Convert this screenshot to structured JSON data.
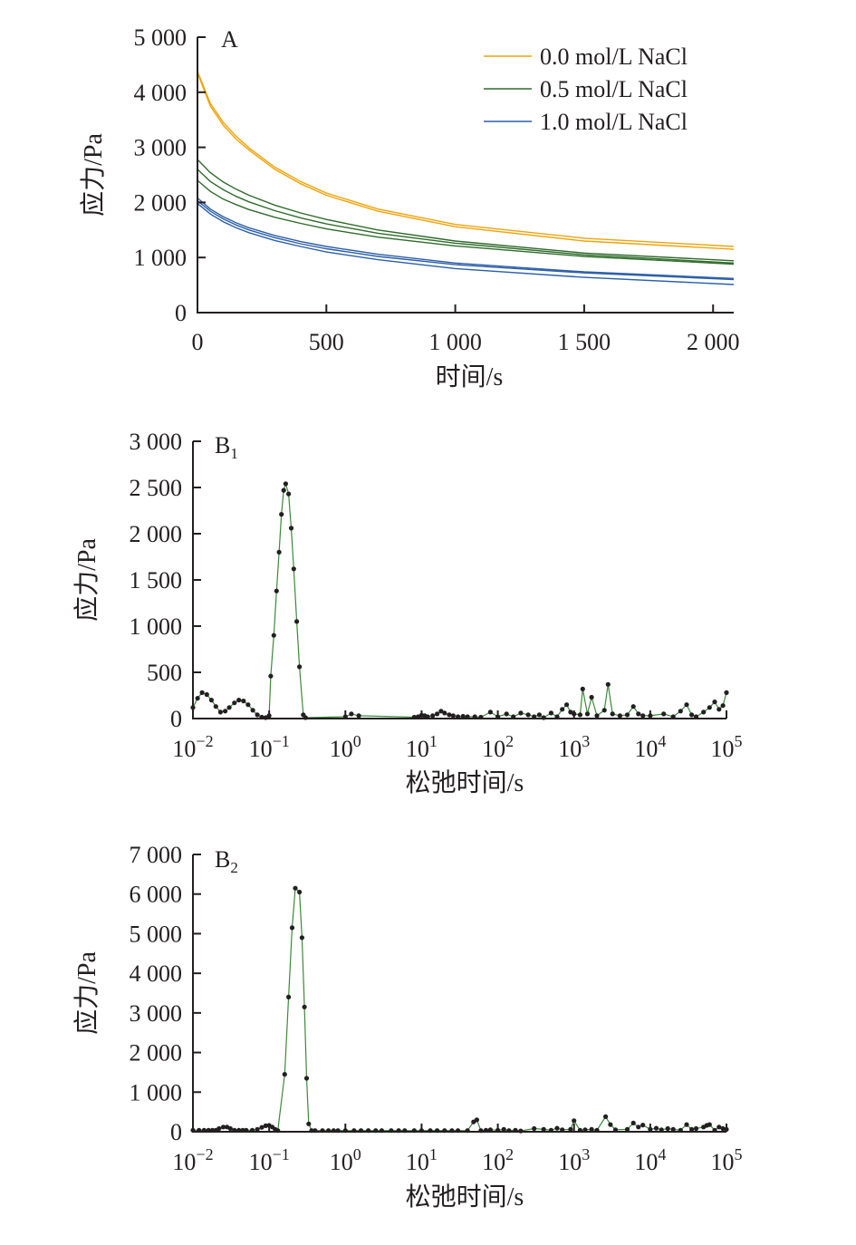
{
  "colors": {
    "nacl_0_0": "#f0a30a",
    "nacl_0_5": "#2e6b2a",
    "nacl_1_0": "#2c5fa8",
    "spectrum_line": "#3a8a3a",
    "spectrum_point": "#231f20",
    "axis": "#231f20"
  },
  "chart_data": [
    {
      "type": "line",
      "panel_label": "A",
      "xlabel": "时间/s",
      "ylabel": "应力/Pa",
      "xlim": [
        0,
        2080
      ],
      "ylim": [
        0,
        5000
      ],
      "xticks": [
        0,
        500,
        1000,
        1500,
        2000
      ],
      "xtick_labels": [
        "0",
        "500",
        "1 000",
        "1 500",
        "2 000"
      ],
      "yticks": [
        0,
        1000,
        2000,
        3000,
        4000,
        5000
      ],
      "ytick_labels": [
        "0",
        "1 000",
        "2 000",
        "3 000",
        "4 000",
        "5 000"
      ],
      "legend_position": "top-right",
      "legend": [
        "0.0 mol/L NaCl",
        "0.5 mol/L NaCl",
        "1.0 mol/L NaCl"
      ],
      "x": [
        0,
        50,
        100,
        150,
        200,
        300,
        400,
        500,
        700,
        1000,
        1500,
        2080
      ],
      "series": [
        {
          "name": "0.0 mol/L NaCl",
          "color_key": "nacl_0_0",
          "values": [
            4380,
            3800,
            3450,
            3200,
            2990,
            2640,
            2380,
            2170,
            1880,
            1600,
            1350,
            1200
          ]
        },
        {
          "name": "0.0 mol/L NaCl",
          "color_key": "nacl_0_0",
          "values": [
            4350,
            3750,
            3400,
            3150,
            2950,
            2600,
            2340,
            2130,
            1840,
            1560,
            1300,
            1150
          ]
        },
        {
          "name": "0.5 mol/L NaCl",
          "color_key": "nacl_0_5",
          "values": [
            2780,
            2540,
            2370,
            2240,
            2130,
            1950,
            1810,
            1690,
            1500,
            1300,
            1080,
            940
          ]
        },
        {
          "name": "0.5 mol/L NaCl",
          "color_key": "nacl_0_5",
          "values": [
            2600,
            2380,
            2230,
            2110,
            2010,
            1850,
            1720,
            1610,
            1440,
            1260,
            1050,
            900
          ]
        },
        {
          "name": "0.5 mol/L NaCl",
          "color_key": "nacl_0_5",
          "values": [
            2400,
            2200,
            2060,
            1960,
            1870,
            1730,
            1620,
            1520,
            1370,
            1210,
            1020,
            880
          ]
        },
        {
          "name": "1.0 mol/L NaCl",
          "color_key": "nacl_1_0",
          "values": [
            2080,
            1880,
            1740,
            1630,
            1540,
            1400,
            1290,
            1200,
            1060,
            900,
            740,
            620
          ]
        },
        {
          "name": "1.0 mol/L NaCl",
          "color_key": "nacl_1_0",
          "values": [
            2030,
            1840,
            1700,
            1590,
            1500,
            1360,
            1250,
            1160,
            1020,
            870,
            720,
            600
          ]
        },
        {
          "name": "1.0 mol/L NaCl",
          "color_key": "nacl_1_0",
          "values": [
            1980,
            1790,
            1650,
            1540,
            1450,
            1310,
            1200,
            1100,
            960,
            800,
            640,
            510
          ]
        }
      ]
    },
    {
      "type": "line",
      "panel_label": "B",
      "panel_label_sub": "1",
      "xlabel": "松弛时间/s",
      "ylabel": "应力/Pa",
      "xscale": "log",
      "xlim": [
        0.01,
        100000
      ],
      "ylim": [
        0,
        3000
      ],
      "xtick_exponents": [
        "−2",
        "−1",
        "0",
        "1",
        "2",
        "3",
        "4",
        "5"
      ],
      "xtick_base": "10",
      "yticks": [
        0,
        500,
        1000,
        1500,
        2000,
        2500,
        3000
      ],
      "ytick_labels": [
        "0",
        "500",
        "1 000",
        "1 500",
        "2 000",
        "2 500",
        "3 000"
      ],
      "series": [
        {
          "name": "",
          "points": [
            [
              0.01,
              120
            ],
            [
              0.0115,
              220
            ],
            [
              0.0132,
              280
            ],
            [
              0.0152,
              260
            ],
            [
              0.0175,
              200
            ],
            [
              0.02,
              130
            ],
            [
              0.023,
              70
            ],
            [
              0.0265,
              80
            ],
            [
              0.03,
              120
            ],
            [
              0.035,
              170
            ],
            [
              0.04,
              200
            ],
            [
              0.046,
              190
            ],
            [
              0.053,
              150
            ],
            [
              0.061,
              90
            ],
            [
              0.07,
              40
            ],
            [
              0.08,
              15
            ],
            [
              0.09,
              10
            ],
            [
              0.1,
              30
            ],
            [
              0.105,
              460
            ],
            [
              0.115,
              900
            ],
            [
              0.125,
              1380
            ],
            [
              0.135,
              1800
            ],
            [
              0.145,
              2210
            ],
            [
              0.155,
              2470
            ],
            [
              0.165,
              2540
            ],
            [
              0.18,
              2430
            ],
            [
              0.195,
              2060
            ],
            [
              0.21,
              1620
            ],
            [
              0.23,
              1050
            ],
            [
              0.25,
              560
            ],
            [
              0.28,
              40
            ],
            [
              0.3,
              10
            ],
            [
              1.0,
              20
            ],
            [
              1.2,
              50
            ],
            [
              1.5,
              30
            ],
            [
              8,
              15
            ],
            [
              9,
              20
            ],
            [
              10,
              35
            ],
            [
              11,
              30
            ],
            [
              12,
              20
            ],
            [
              14,
              30
            ],
            [
              16,
              50
            ],
            [
              18,
              80
            ],
            [
              20,
              60
            ],
            [
              23,
              40
            ],
            [
              26,
              30
            ],
            [
              30,
              20
            ],
            [
              35,
              25
            ],
            [
              40,
              20
            ],
            [
              50,
              20
            ],
            [
              60,
              15
            ],
            [
              80,
              70
            ],
            [
              100,
              20
            ],
            [
              130,
              50
            ],
            [
              160,
              20
            ],
            [
              200,
              60
            ],
            [
              250,
              40
            ],
            [
              300,
              20
            ],
            [
              350,
              40
            ],
            [
              400,
              10
            ],
            [
              500,
              60
            ],
            [
              600,
              20
            ],
            [
              700,
              100
            ],
            [
              800,
              150
            ],
            [
              900,
              70
            ],
            [
              1000,
              50
            ],
            [
              1200,
              40
            ],
            [
              1300,
              320
            ],
            [
              1500,
              50
            ],
            [
              1700,
              230
            ],
            [
              2000,
              30
            ],
            [
              2500,
              90
            ],
            [
              2800,
              370
            ],
            [
              3200,
              50
            ],
            [
              4000,
              30
            ],
            [
              5000,
              40
            ],
            [
              6000,
              130
            ],
            [
              7000,
              50
            ],
            [
              8000,
              30
            ],
            [
              10000,
              30
            ],
            [
              15000,
              50
            ],
            [
              20000,
              20
            ],
            [
              25000,
              80
            ],
            [
              30000,
              150
            ],
            [
              35000,
              40
            ],
            [
              40000,
              20
            ],
            [
              50000,
              70
            ],
            [
              60000,
              120
            ],
            [
              70000,
              180
            ],
            [
              80000,
              100
            ],
            [
              90000,
              140
            ],
            [
              100000,
              280
            ]
          ]
        }
      ]
    },
    {
      "type": "line",
      "panel_label": "B",
      "panel_label_sub": "2",
      "xlabel": "松弛时间/s",
      "ylabel": "应力/Pa",
      "xscale": "log",
      "xlim": [
        0.01,
        100000
      ],
      "ylim": [
        0,
        7000
      ],
      "xtick_exponents": [
        "−2",
        "−1",
        "0",
        "1",
        "2",
        "3",
        "4",
        "5"
      ],
      "xtick_base": "10",
      "yticks": [
        0,
        1000,
        2000,
        3000,
        4000,
        5000,
        6000,
        7000
      ],
      "ytick_labels": [
        "0",
        "1 000",
        "2 000",
        "3 000",
        "4 000",
        "5 000",
        "6 000",
        "7 000"
      ],
      "series": [
        {
          "name": "",
          "points": [
            [
              0.01,
              40
            ],
            [
              0.012,
              40
            ],
            [
              0.014,
              40
            ],
            [
              0.016,
              40
            ],
            [
              0.018,
              40
            ],
            [
              0.02,
              40
            ],
            [
              0.022,
              80
            ],
            [
              0.025,
              120
            ],
            [
              0.028,
              120
            ],
            [
              0.031,
              80
            ],
            [
              0.035,
              40
            ],
            [
              0.04,
              40
            ],
            [
              0.045,
              40
            ],
            [
              0.05,
              40
            ],
            [
              0.06,
              40
            ],
            [
              0.07,
              60
            ],
            [
              0.08,
              110
            ],
            [
              0.09,
              150
            ],
            [
              0.1,
              160
            ],
            [
              0.11,
              120
            ],
            [
              0.12,
              60
            ],
            [
              0.13,
              30
            ],
            [
              0.16,
              1450
            ],
            [
              0.18,
              3400
            ],
            [
              0.2,
              5150
            ],
            [
              0.22,
              6150
            ],
            [
              0.25,
              6050
            ],
            [
              0.27,
              4900
            ],
            [
              0.29,
              3150
            ],
            [
              0.31,
              1350
            ],
            [
              0.33,
              200
            ],
            [
              0.36,
              30
            ],
            [
              0.4,
              30
            ],
            [
              0.5,
              30
            ],
            [
              0.6,
              30
            ],
            [
              0.7,
              30
            ],
            [
              0.8,
              30
            ],
            [
              1,
              30
            ],
            [
              1.3,
              30
            ],
            [
              1.6,
              30
            ],
            [
              2,
              30
            ],
            [
              2.5,
              30
            ],
            [
              3,
              30
            ],
            [
              4,
              30
            ],
            [
              5,
              30
            ],
            [
              6,
              30
            ],
            [
              8,
              30
            ],
            [
              10,
              30
            ],
            [
              13,
              30
            ],
            [
              16,
              30
            ],
            [
              20,
              30
            ],
            [
              25,
              30
            ],
            [
              30,
              30
            ],
            [
              40,
              30
            ],
            [
              48,
              250
            ],
            [
              53,
              300
            ],
            [
              60,
              30
            ],
            [
              70,
              40
            ],
            [
              80,
              50
            ],
            [
              100,
              40
            ],
            [
              120,
              60
            ],
            [
              140,
              30
            ],
            [
              170,
              40
            ],
            [
              200,
              20
            ],
            [
              300,
              80
            ],
            [
              400,
              60
            ],
            [
              500,
              40
            ],
            [
              600,
              90
            ],
            [
              700,
              50
            ],
            [
              900,
              60
            ],
            [
              1000,
              280
            ],
            [
              1200,
              40
            ],
            [
              1400,
              50
            ],
            [
              1700,
              60
            ],
            [
              2000,
              40
            ],
            [
              2600,
              380
            ],
            [
              3000,
              180
            ],
            [
              3500,
              50
            ],
            [
              5000,
              60
            ],
            [
              6000,
              220
            ],
            [
              7000,
              120
            ],
            [
              8000,
              170
            ],
            [
              10000,
              60
            ],
            [
              12000,
              90
            ],
            [
              14000,
              50
            ],
            [
              17000,
              80
            ],
            [
              20000,
              60
            ],
            [
              25000,
              40
            ],
            [
              30000,
              180
            ],
            [
              35000,
              60
            ],
            [
              40000,
              80
            ],
            [
              50000,
              120
            ],
            [
              55000,
              160
            ],
            [
              60000,
              180
            ],
            [
              70000,
              40
            ],
            [
              80000,
              120
            ],
            [
              90000,
              80
            ],
            [
              100000,
              60
            ]
          ]
        }
      ]
    }
  ]
}
